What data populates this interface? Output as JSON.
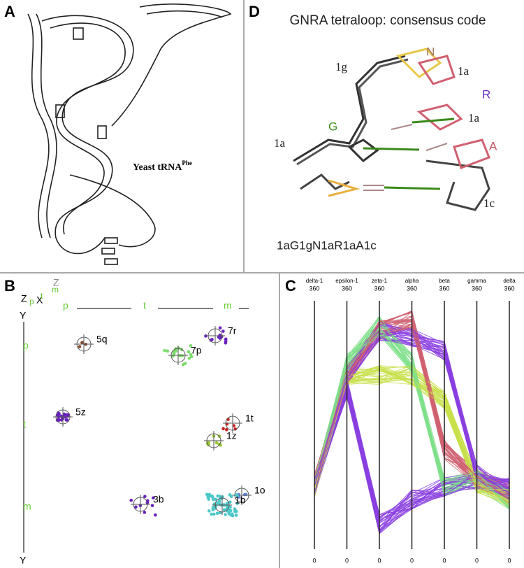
{
  "panels": {
    "A": {
      "letter": "A",
      "caption": "Yeast tRNA",
      "caption_sup": "Phe"
    },
    "D": {
      "letter": "D",
      "title": "GNRA tetraloop: consensus code",
      "labels": [
        "N",
        "1g",
        "1a",
        "R",
        "1a",
        "G",
        "1a",
        "A",
        "1c"
      ],
      "code": "1aG1gN1aR1aA1c"
    },
    "B": {
      "letter": "B",
      "corner": [
        "Z",
        "X",
        "Y",
        "Z",
        "p",
        "t",
        "m"
      ],
      "top_labels": [
        "p",
        "t",
        "m"
      ],
      "left_labels": [
        "p",
        "t",
        "m"
      ],
      "bottom_label": "Y",
      "clusters": [
        "5q",
        "7r",
        "7p",
        "5z",
        "1t",
        "1z",
        "1o",
        "3b",
        "1b"
      ]
    },
    "C": {
      "letter": "C",
      "axes": [
        {
          "name": "delta-1",
          "top": 360,
          "bottom": 0
        },
        {
          "name": "epsilon-1",
          "top": 360,
          "bottom": 0
        },
        {
          "name": "zeta-1",
          "top": 360,
          "bottom": 0
        },
        {
          "name": "alpha",
          "top": 360,
          "bottom": 0
        },
        {
          "name": "beta",
          "top": 360,
          "bottom": 0
        },
        {
          "name": "gamma",
          "top": 360,
          "bottom": 0
        },
        {
          "name": "delta",
          "top": 360,
          "bottom": 0
        }
      ]
    }
  }
}
